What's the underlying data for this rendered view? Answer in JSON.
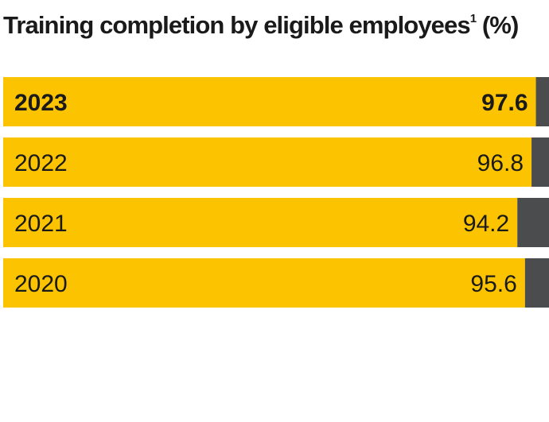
{
  "title": {
    "text": "Training completion by eligible employees",
    "superscript": "1",
    "unit": " (%)"
  },
  "colors": {
    "completed": "#fcc400",
    "remainder": "#4a4c4e",
    "text": "#1a1a1a"
  },
  "chart_data": {
    "type": "bar",
    "orientation": "horizontal",
    "stacked": true,
    "categories": [
      "2023",
      "2022",
      "2021",
      "2020"
    ],
    "values": [
      97.6,
      96.8,
      94.2,
      95.6
    ],
    "value_labels": [
      "97.6",
      "96.8",
      "94.2",
      "95.6"
    ],
    "highlighted_category": "2023",
    "xlim": [
      0,
      100
    ]
  }
}
